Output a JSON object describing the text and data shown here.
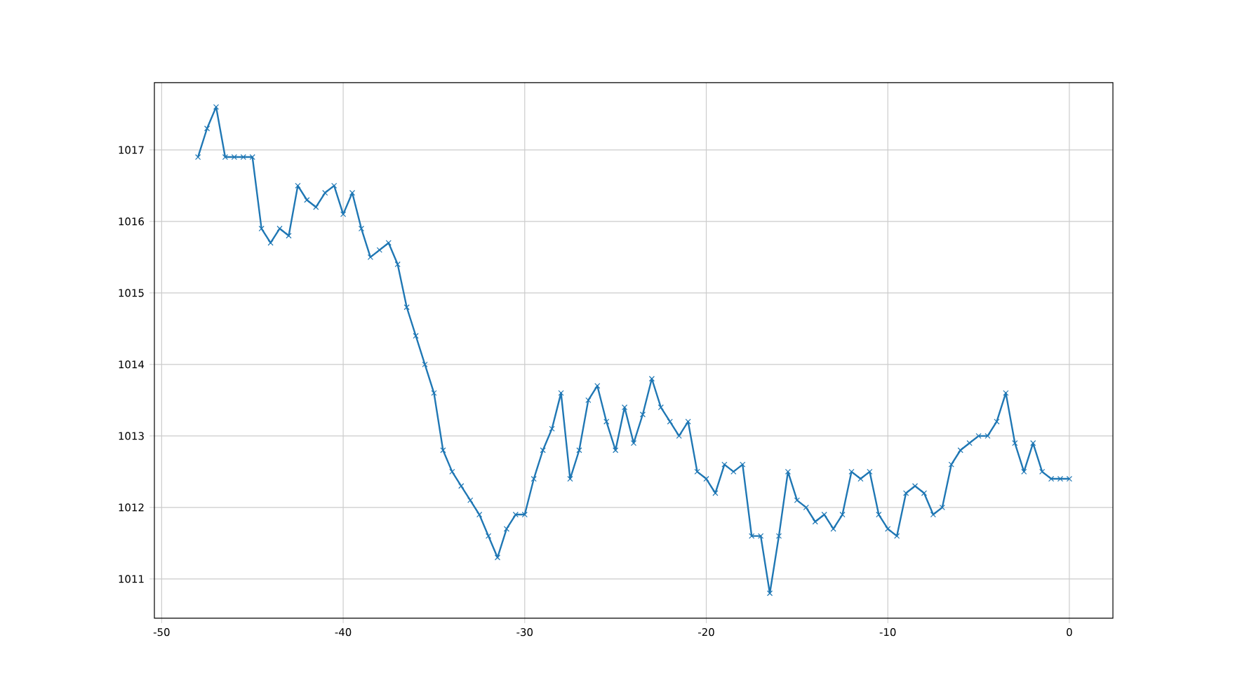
{
  "chart_data": {
    "type": "line",
    "x": [
      -48,
      -47.5,
      -47,
      -46.5,
      -46,
      -45.5,
      -45,
      -44.5,
      -44,
      -43.5,
      -43,
      -42.5,
      -42,
      -41.5,
      -41,
      -40.5,
      -40,
      -39.5,
      -39,
      -38.5,
      -38,
      -37.5,
      -37,
      -36.5,
      -36,
      -35.5,
      -35,
      -34.5,
      -34,
      -33.5,
      -33,
      -32.5,
      -32,
      -31.5,
      -31,
      -30.5,
      -30,
      -29.5,
      -29,
      -28.5,
      -28,
      -27.5,
      -27,
      -26.5,
      -26,
      -25.5,
      -25,
      -24.5,
      -24,
      -23.5,
      -23,
      -22.5,
      -22,
      -21.5,
      -21,
      -20.5,
      -20,
      -19.5,
      -19,
      -18.5,
      -18,
      -17.5,
      -17,
      -16.5,
      -16,
      -15.5,
      -15,
      -14.5,
      -14,
      -13.5,
      -13,
      -12.5,
      -12,
      -11.5,
      -11,
      -10.5,
      -10,
      -9.5,
      -9,
      -8.5,
      -8,
      -7.5,
      -7,
      -6.5,
      -6,
      -5.5,
      -5,
      -4.5,
      -4,
      -3.5,
      -3,
      -2.5,
      -2,
      -1.5,
      -1,
      -0.5,
      0
    ],
    "series": [
      {
        "color": "#1f77b4",
        "values": [
          1016.9,
          1017.3,
          1017.6,
          1016.9,
          1016.9,
          1016.9,
          1016.9,
          1015.9,
          1015.7,
          1015.9,
          1015.8,
          1016.5,
          1016.3,
          1016.2,
          1016.4,
          1016.5,
          1016.1,
          1016.4,
          1015.9,
          1015.5,
          1015.6,
          1015.7,
          1015.4,
          1014.8,
          1014.4,
          1014.0,
          1013.6,
          1012.8,
          1012.5,
          1012.3,
          1012.1,
          1011.9,
          1011.6,
          1011.3,
          1011.7,
          1011.9,
          1011.9,
          1012.4,
          1012.8,
          1013.1,
          1013.6,
          1012.4,
          1012.8,
          1013.5,
          1013.7,
          1013.2,
          1012.8,
          1013.4,
          1012.9,
          1013.3,
          1013.8,
          1013.4,
          1013.2,
          1013.0,
          1013.2,
          1012.5,
          1012.4,
          1012.2,
          1012.6,
          1012.5,
          1012.6,
          1011.6,
          1011.6,
          1010.8,
          1011.6,
          1012.5,
          1012.1,
          1012.0,
          1011.8,
          1011.9,
          1011.7,
          1011.9,
          1012.5,
          1012.4,
          1012.5,
          1011.9,
          1011.7,
          1011.6,
          1012.2,
          1012.3,
          1012.2,
          1011.9,
          1012.0,
          1012.6,
          1012.8,
          1012.9,
          1013.0,
          1013.0,
          1013.2,
          1013.6,
          1012.9,
          1012.5,
          1012.9,
          1012.5,
          1012.4,
          1012.4,
          1012.4
        ]
      }
    ],
    "xlim": [
      -50.4,
      2.4
    ],
    "ylim": [
      1010.45,
      1017.94
    ],
    "xticks": [
      -50,
      -40,
      -30,
      -20,
      -10,
      0
    ],
    "yticks": [
      1011,
      1012,
      1013,
      1014,
      1015,
      1016,
      1017
    ],
    "grid": true,
    "marker": "cross",
    "line_style": "solid"
  }
}
